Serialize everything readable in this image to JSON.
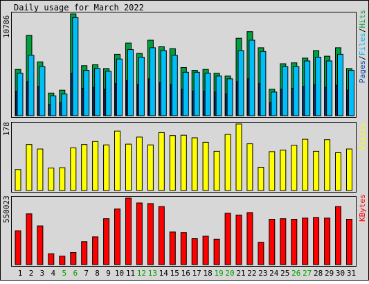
{
  "title": "Daily usage for March 2022",
  "chart_data": [
    {
      "type": "bar",
      "panel": "hits-files-pages",
      "ylabel_max": "10786",
      "legend": {
        "pages": "Pages",
        "files": "Files",
        "hits": "Hits",
        "separator": "/"
      },
      "ylim": [
        0,
        10786
      ],
      "series": [
        {
          "name": "Hits",
          "color": "#00a040",
          "values": [
            4900,
            8500,
            5700,
            2400,
            2700,
            10786,
            5300,
            5400,
            5000,
            6500,
            7700,
            6600,
            8000,
            7300,
            7100,
            5100,
            4800,
            4900,
            4500,
            4200,
            8200,
            8900,
            7200,
            2800,
            5500,
            5600,
            6100,
            6900,
            6300,
            7200,
            5000
          ]
        },
        {
          "name": "Files",
          "color": "#00bff8",
          "values": [
            4500,
            6400,
            5200,
            2100,
            2300,
            10400,
            4800,
            5000,
            4700,
            6000,
            7000,
            6200,
            7200,
            6900,
            6400,
            4600,
            4600,
            4500,
            4200,
            3900,
            6900,
            8000,
            6800,
            2500,
            5200,
            5200,
            5800,
            6200,
            5800,
            6500,
            4800
          ]
        },
        {
          "name": "Pages",
          "color": "#0b49a8",
          "values": [
            2600,
            3600,
            3100,
            1200,
            1400,
            4500,
            2900,
            3000,
            2800,
            3400,
            3700,
            3300,
            3900,
            3500,
            3300,
            2800,
            2600,
            2600,
            2500,
            2300,
            3600,
            3900,
            3400,
            1400,
            2800,
            2900,
            3100,
            3300,
            3000,
            3200,
            2700
          ]
        }
      ]
    },
    {
      "type": "bar",
      "panel": "visits",
      "ylabel_max": "178",
      "legend": "Visits",
      "ylim": [
        0,
        178
      ],
      "series": [
        {
          "name": "Visits",
          "color": "#ffff00",
          "values": [
            56,
            123,
            111,
            60,
            61,
            114,
            123,
            131,
            122,
            159,
            124,
            143,
            122,
            155,
            147,
            148,
            141,
            129,
            105,
            150,
            178,
            125,
            62,
            104,
            108,
            121,
            137,
            105,
            136,
            101,
            111
          ]
        }
      ]
    },
    {
      "type": "bar",
      "panel": "kbytes",
      "ylabel_max": "550023",
      "legend": "KBytes",
      "ylim": [
        0,
        550023
      ],
      "series": [
        {
          "name": "KBytes",
          "color": "#ff0000",
          "values": [
            280000,
            420000,
            320000,
            90000,
            70000,
            100000,
            190000,
            230000,
            380000,
            460000,
            550023,
            510000,
            505000,
            480000,
            270000,
            265000,
            215000,
            235000,
            210000,
            425000,
            410000,
            430000,
            185000,
            375000,
            380000,
            375000,
            385000,
            390000,
            385000,
            480000,
            375000
          ]
        }
      ]
    }
  ],
  "x_axis": {
    "days": [
      "1",
      "2",
      "3",
      "4",
      "5",
      "6",
      "7",
      "8",
      "9",
      "10",
      "11",
      "12",
      "13",
      "14",
      "15",
      "16",
      "17",
      "18",
      "19",
      "20",
      "21",
      "22",
      "23",
      "24",
      "25",
      "26",
      "27",
      "28",
      "29",
      "30",
      "31"
    ],
    "weekend_days": [
      5,
      6,
      12,
      13,
      19,
      20,
      26,
      27
    ],
    "weekday_color": "#000000",
    "weekend_color": "#00a000"
  }
}
